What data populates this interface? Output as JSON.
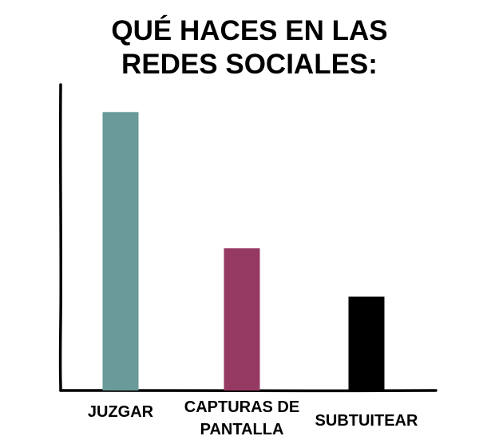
{
  "chart_data": {
    "type": "bar",
    "title_lines": [
      "QUÉ HACES EN LAS",
      "REDES SOCIALES:"
    ],
    "xlabel": "",
    "ylabel": "",
    "ylim": [
      0,
      100
    ],
    "grid": false,
    "legend": "none",
    "categories": [
      {
        "lines": [
          "JUZGAR"
        ]
      },
      {
        "lines": [
          "CAPTURAS DE",
          "PANTALLA"
        ]
      },
      {
        "lines": [
          "SUBTUITEAR"
        ]
      }
    ],
    "values": [
      92,
      47,
      31
    ],
    "colors": [
      "#6a9a9a",
      "#973a63",
      "#000000"
    ]
  }
}
